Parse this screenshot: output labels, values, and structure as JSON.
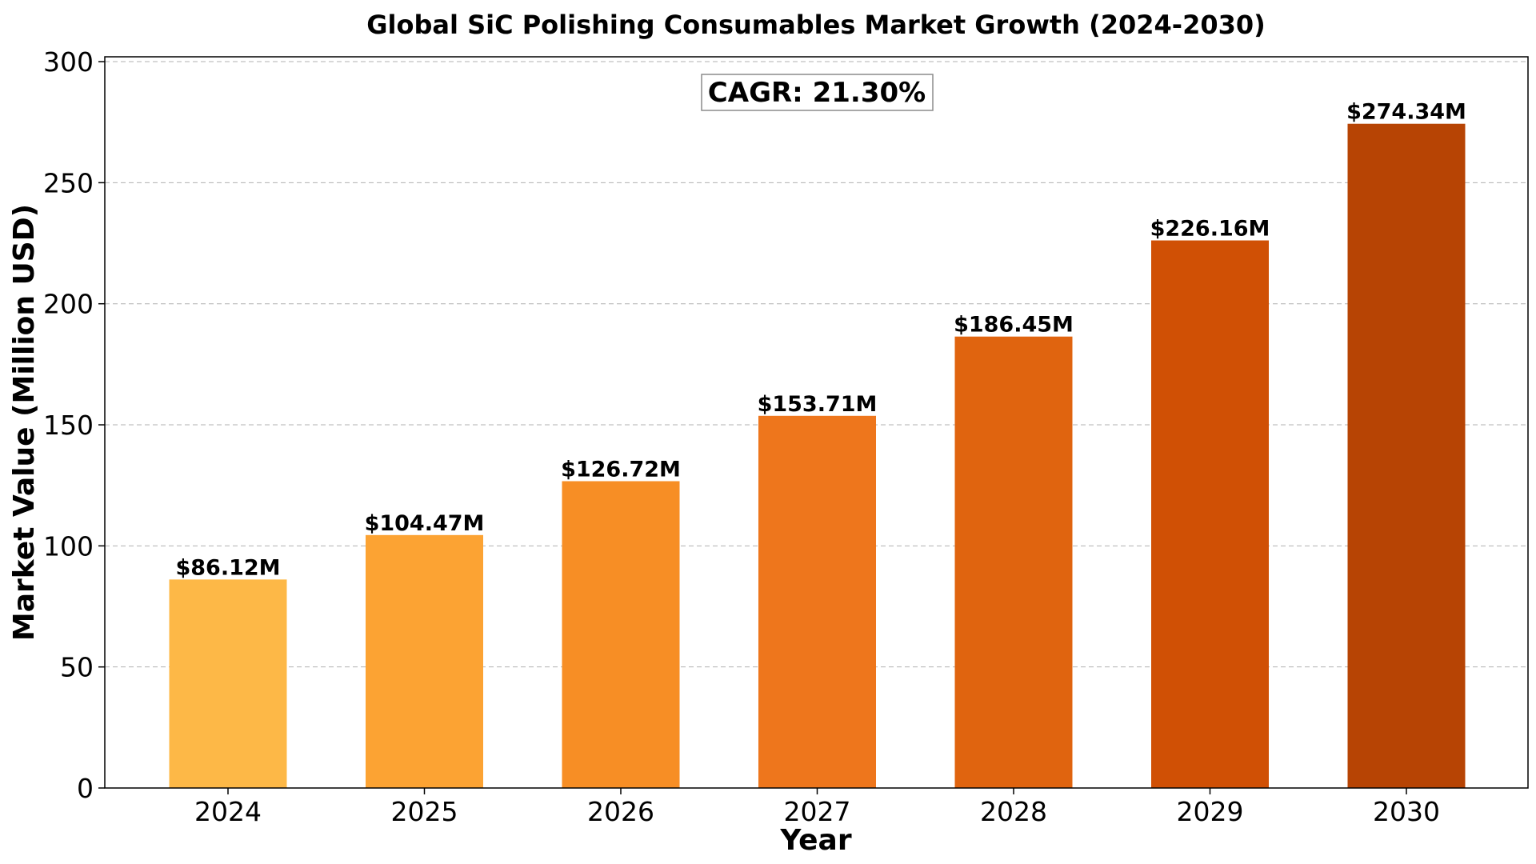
{
  "chart_data": {
    "type": "bar",
    "title": "Global SiC Polishing Consumables Market Growth (2024-2030)",
    "xlabel": "Year",
    "ylabel": "Market Value (Million USD)",
    "categories": [
      "2024",
      "2025",
      "2026",
      "2027",
      "2028",
      "2029",
      "2030"
    ],
    "values": [
      86.12,
      104.47,
      126.72,
      153.71,
      186.45,
      226.16,
      274.34
    ],
    "value_labels": [
      "$86.12M",
      "$104.47M",
      "$126.72M",
      "$153.71M",
      "$186.45M",
      "$226.16M",
      "$274.34M"
    ],
    "bar_colors": [
      "#FDB847",
      "#FCA333",
      "#F78E25",
      "#EE761C",
      "#E0640F",
      "#D05005",
      "#B74404"
    ],
    "ylim": [
      0,
      300
    ],
    "yticks": [
      0,
      50,
      100,
      150,
      200,
      250,
      300
    ],
    "grid": "y-dashed",
    "annotation": "CAGR: 21.30%"
  }
}
